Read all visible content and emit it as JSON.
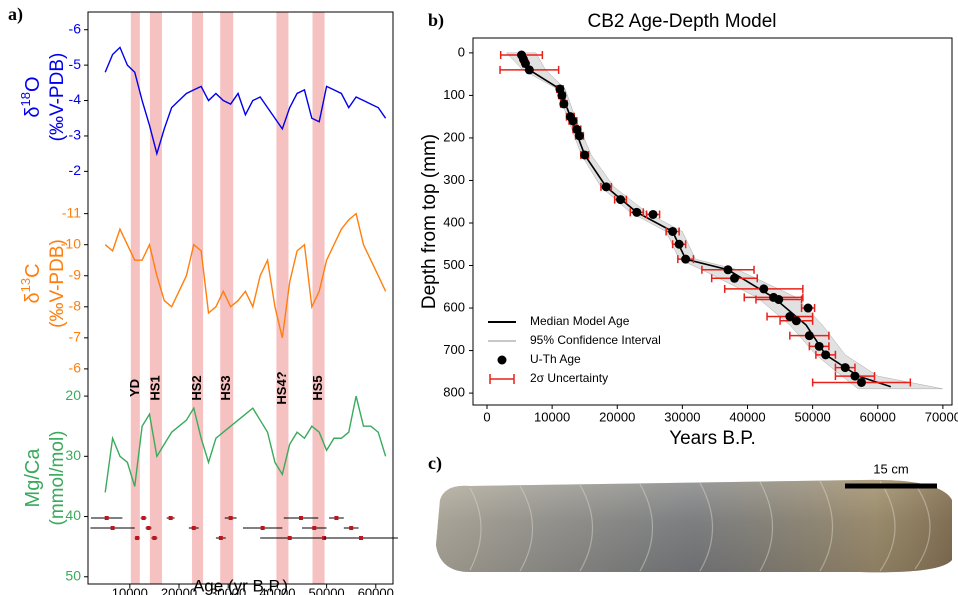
{
  "chart_data": [
    {
      "type": "stacked-line",
      "panel": "a)",
      "x_label": "Age (yr B.P.)",
      "xlim": [
        1500,
        63500
      ],
      "xticks": [
        10000,
        20000,
        30000,
        40000,
        50000,
        60000
      ],
      "x": [
        5000,
        6500,
        8000,
        9500,
        11000,
        12500,
        14000,
        15500,
        17000,
        18500,
        20000,
        21500,
        23000,
        24500,
        26000,
        27500,
        29000,
        30500,
        32000,
        33500,
        35000,
        36500,
        38000,
        39500,
        41000,
        42500,
        44000,
        45500,
        47000,
        48500,
        50000,
        51500,
        53000,
        54500,
        56000,
        57500,
        59000,
        60500,
        62000
      ],
      "series": [
        {
          "name": "δ18O",
          "label": [
            "δ",
            "18",
            "O"
          ],
          "unit": "(‰V-PDB)",
          "color": "#0000ee",
          "ylim": [
            -1.7,
            -6.5
          ],
          "yticks": [
            -6,
            -5,
            -4,
            -3,
            -2
          ],
          "values": [
            -4.8,
            -5.3,
            -5.5,
            -5.0,
            -4.8,
            -4.0,
            -3.3,
            -2.5,
            -3.2,
            -3.8,
            -4.0,
            -4.2,
            -4.3,
            -4.4,
            -4.0,
            -4.2,
            -4.0,
            -3.9,
            -4.2,
            -3.6,
            -4.0,
            -4.1,
            -3.8,
            -3.5,
            -3.2,
            -3.8,
            -4.2,
            -4.3,
            -3.5,
            -3.4,
            -4.4,
            -4.3,
            -4.2,
            -3.8,
            -4.1,
            -4.0,
            -3.9,
            -3.8,
            -3.5
          ]
        },
        {
          "name": "δ13C",
          "label": [
            "δ",
            "13",
            "C"
          ],
          "unit": "(‰V-PDB)",
          "color": "#ff7f0e",
          "ylim": [
            -5.9,
            -11.6
          ],
          "yticks": [
            -11,
            -10,
            -9,
            -8,
            -7,
            -6
          ],
          "values": [
            -10,
            -9.8,
            -10.5,
            -10,
            -9.5,
            -9.5,
            -10,
            -9.0,
            -8.2,
            -8.0,
            -8.5,
            -9.0,
            -10.0,
            -9.8,
            -7.8,
            -8.0,
            -8.5,
            -8.0,
            -8.2,
            -8.5,
            -8.0,
            -9.0,
            -9.5,
            -8.0,
            -7.0,
            -8.8,
            -9.8,
            -10.0,
            -8.0,
            -8.5,
            -9.5,
            -10.0,
            -10.5,
            -10.8,
            -11.0,
            -10.0,
            -9.5,
            -9.0,
            -8.5
          ]
        },
        {
          "name": "Mg/Ca",
          "label": [
            "Mg/Ca"
          ],
          "unit": "(mmol/mol)",
          "color": "#3aaa5c",
          "ylim": [
            51.2,
            16
          ],
          "yticks": [
            20,
            30,
            40,
            50
          ],
          "values": [
            36,
            27,
            30,
            31,
            35,
            25,
            23,
            30,
            28,
            26,
            25,
            24,
            22,
            27,
            31,
            27,
            26,
            25,
            24,
            23,
            22,
            24,
            26,
            31,
            33,
            28,
            26,
            27,
            25,
            26,
            29,
            27,
            27,
            26,
            20,
            25,
            25,
            26,
            30
          ]
        }
      ],
      "events": [
        {
          "name": "YD",
          "start": 10200,
          "end": 12040
        },
        {
          "name": "HS1",
          "start": 14080,
          "end": 16530
        },
        {
          "name": "HS2",
          "start": 22650,
          "end": 24900
        },
        {
          "name": "HS3",
          "start": 28370,
          "end": 31020
        },
        {
          "name": "HS4?",
          "start": 39800,
          "end": 42250
        },
        {
          "name": "HS5",
          "start": 47140,
          "end": 49590
        }
      ],
      "dates": {
        "age": [
          5300,
          6500,
          11500,
          12800,
          13800,
          15000,
          18300,
          23000,
          28500,
          30500,
          37000,
          42500,
          44800,
          47500,
          49500,
          52000,
          55000,
          57000
        ],
        "error": [
          3200,
          4500,
          500,
          600,
          600,
          600,
          800,
          1000,
          1000,
          1200,
          4000,
          6000,
          3500,
          2500,
          3000,
          1500,
          1500,
          7500
        ]
      }
    },
    {
      "type": "age-depth",
      "panel": "b)",
      "title": "CB2 Age-Depth Model",
      "x_label": "Years B.P.",
      "y_label": "Depth from top (mm)",
      "xlim": [
        -2150,
        71400
      ],
      "xticks": [
        0,
        10000,
        20000,
        30000,
        40000,
        50000,
        60000,
        70000
      ],
      "ylim": [
        -35,
        828
      ],
      "yticks": [
        0,
        100,
        200,
        300,
        400,
        500,
        600,
        700,
        800
      ],
      "y_inverted": true,
      "ci": {
        "name": "95% Confidence Interval",
        "color": "#c8c8c8",
        "depth": [
          0,
          40,
          85,
          150,
          240,
          315,
          375,
          420,
          485,
          510,
          575,
          640,
          710,
          760,
          790
        ],
        "lower": [
          3000,
          5500,
          10800,
          12300,
          14500,
          17500,
          22000,
          27500,
          29500,
          33000,
          41500,
          46500,
          50500,
          54500,
          57000
        ],
        "upper": [
          7500,
          9000,
          12000,
          13500,
          16000,
          19500,
          24500,
          30000,
          32000,
          38500,
          47500,
          51500,
          55000,
          60000,
          70000
        ]
      },
      "median": {
        "name": "Median Model Age",
        "color": "#000000",
        "age": [
          5300,
          6500,
          11200,
          12800,
          15000,
          18300,
          23000,
          28500,
          30500,
          37000,
          44000,
          49000,
          52000,
          57000,
          62000
        ],
        "depth": [
          5,
          40,
          85,
          150,
          240,
          315,
          375,
          420,
          485,
          510,
          575,
          640,
          710,
          760,
          785
        ]
      },
      "points": {
        "name": "U-Th Age",
        "color": "#000000",
        "error_name": "2σ Uncertainty",
        "error_color": "#e8201a",
        "age": [
          5300,
          5600,
          5900,
          6500,
          11200,
          11500,
          11800,
          12800,
          13200,
          13800,
          14200,
          15000,
          18300,
          20500,
          23000,
          25500,
          28500,
          29500,
          30500,
          37000,
          38000,
          42500,
          44000,
          44800,
          49300,
          46500,
          47500,
          49500,
          51000,
          52000,
          55000,
          56500,
          57500
        ],
        "depth": [
          5,
          15,
          25,
          40,
          85,
          100,
          120,
          150,
          160,
          180,
          195,
          240,
          315,
          345,
          375,
          380,
          420,
          450,
          485,
          510,
          530,
          555,
          575,
          580,
          600,
          620,
          630,
          665,
          690,
          710,
          740,
          760,
          775
        ],
        "error": [
          3200,
          400,
          400,
          4500,
          500,
          500,
          500,
          600,
          600,
          600,
          600,
          600,
          800,
          900,
          1000,
          1000,
          1000,
          1000,
          1200,
          4000,
          3500,
          6000,
          4500,
          3500,
          1000,
          3500,
          2500,
          3000,
          1500,
          1500,
          1500,
          3000,
          7500
        ]
      }
    }
  ],
  "image": {
    "panel": "c)",
    "scale_bar": "15 cm"
  }
}
